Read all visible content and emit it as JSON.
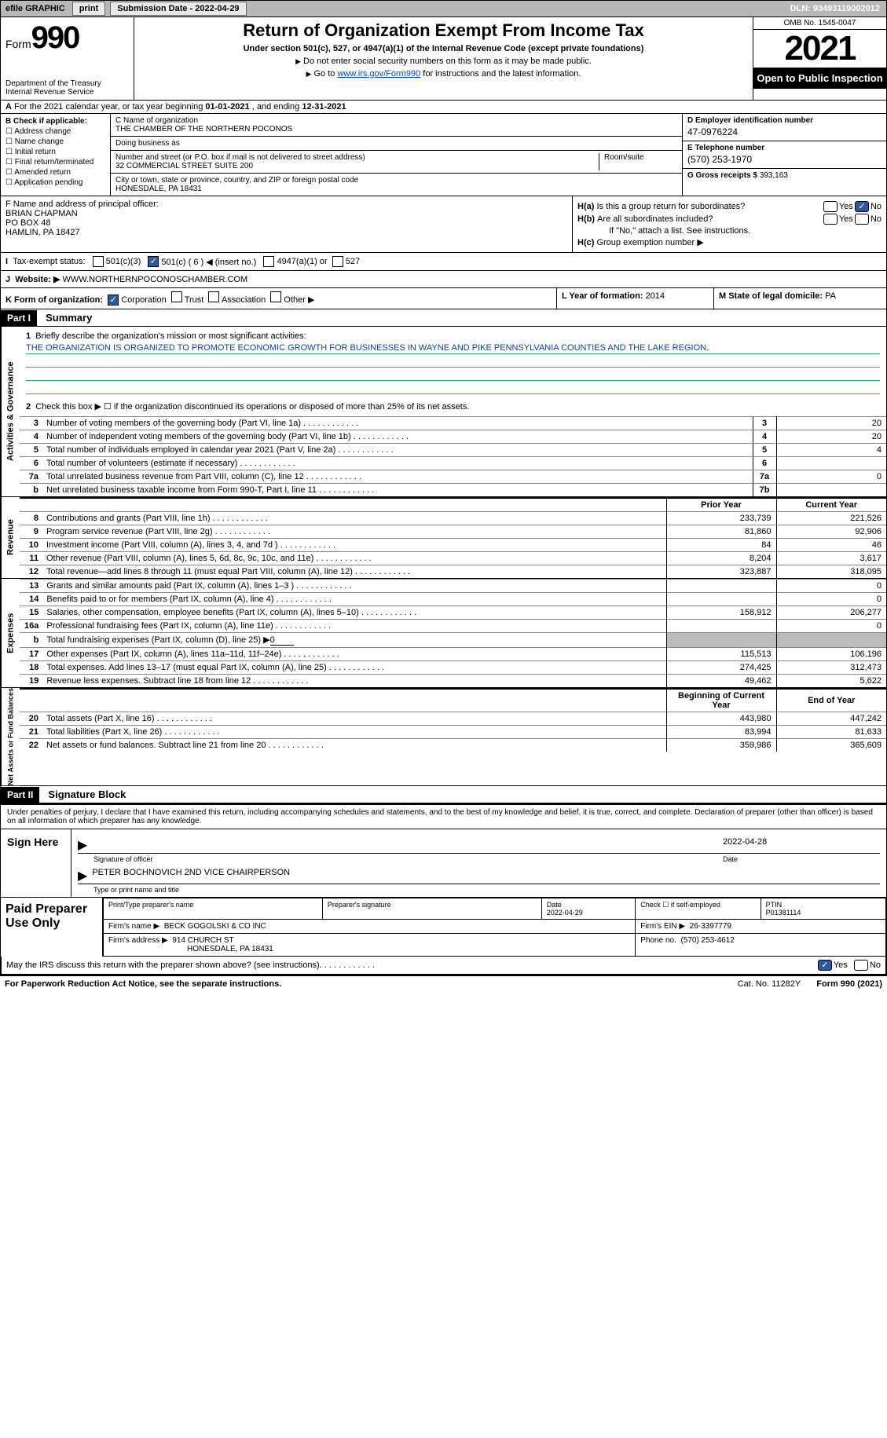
{
  "topbar": {
    "efile": "efile GRAPHIC",
    "print": "print",
    "subdate_label": "Submission Date - ",
    "subdate": "2022-04-29",
    "dln_label": "DLN: ",
    "dln": "93493119002012"
  },
  "header": {
    "form_label": "Form",
    "form_num": "990",
    "dept": "Department of the Treasury",
    "irs": "Internal Revenue Service",
    "title": "Return of Organization Exempt From Income Tax",
    "sub": "Under section 501(c), 527, or 4947(a)(1) of the Internal Revenue Code (except private foundations)",
    "note1": "Do not enter social security numbers on this form as it may be made public.",
    "note2_pre": "Go to ",
    "note2_link": "www.irs.gov/Form990",
    "note2_post": " for instructions and the latest information.",
    "omb": "OMB No. 1545-0047",
    "year": "2021",
    "inspection": "Open to Public Inspection"
  },
  "row_a": {
    "text_pre": "For the 2021 calendar year, or tax year beginning ",
    "begin": "01-01-2021",
    "mid": " , and ending ",
    "end": "12-31-2021"
  },
  "col_b": {
    "label": "B Check if applicable:",
    "items": [
      "Address change",
      "Name change",
      "Initial return",
      "Final return/terminated",
      "Amended return",
      "Application pending"
    ]
  },
  "col_c": {
    "name_label": "C Name of organization",
    "name": "THE CHAMBER OF THE NORTHERN POCONOS",
    "dba_label": "Doing business as",
    "dba": "",
    "street_label": "Number and street (or P.O. box if mail is not delivered to street address)",
    "street": "32 COMMERCIAL STREET SUITE 200",
    "room_label": "Room/suite",
    "city_label": "City or town, state or province, country, and ZIP or foreign postal code",
    "city": "HONESDALE, PA  18431"
  },
  "col_d": {
    "d_label": "D Employer identification number",
    "d_val": "47-0976224",
    "e_label": "E Telephone number",
    "e_val": "(570) 253-1970",
    "g_label": "G Gross receipts $ ",
    "g_val": "393,163"
  },
  "block_f": {
    "f_label": "F Name and address of principal officer:",
    "name": "BRIAN CHAPMAN",
    "addr1": "PO BOX 48",
    "addr2": "HAMLIN, PA  18427"
  },
  "block_h": {
    "ha_label": "Is this a group return for subordinates?",
    "ha_pre": "H(a)",
    "hb_pre": "H(b)",
    "hb_label": "Are all subordinates included?",
    "hb_note": "If \"No,\" attach a list. See instructions.",
    "hc_pre": "H(c)",
    "hc_label": "Group exemption number ▶",
    "yes": "Yes",
    "no": "No"
  },
  "row_i": {
    "label": "Tax-exempt status:",
    "opts": [
      "501(c)(3)",
      "501(c) ( 6 ) ◀ (insert no.)",
      "4947(a)(1) or",
      "527"
    ]
  },
  "row_j": {
    "label": "Website: ▶",
    "val": "WWW.NORTHERNPOCONOSCHAMBER.COM"
  },
  "row_k": {
    "label": "K Form of organization:",
    "opts": [
      "Corporation",
      "Trust",
      "Association",
      "Other ▶"
    ],
    "l_label": "L Year of formation: ",
    "l_val": "2014",
    "m_label": "M State of legal domicile: ",
    "m_val": "PA"
  },
  "part1": {
    "tag": "Part I",
    "title": "Summary",
    "q1_label": "Briefly describe the organization's mission or most significant activities:",
    "q1_num": "1",
    "mission": "THE ORGANIZATION IS ORGANIZED TO PROMOTE ECONOMIC GROWTH FOR BUSINESSES IN WAYNE AND PIKE PENNSYLVANIA COUNTIES AND THE LAKE REGION.",
    "q2_num": "2",
    "q2": "Check this box ▶ ☐ if the organization discontinued its operations or disposed of more than 25% of its net assets."
  },
  "side": {
    "ag": "Activities & Governance",
    "rev": "Revenue",
    "exp": "Expenses",
    "net": "Net Assets or Fund Balances"
  },
  "lines_ag": [
    {
      "n": "3",
      "d": "Number of voting members of the governing body (Part VI, line 1a)",
      "box": "3",
      "v": "20"
    },
    {
      "n": "4",
      "d": "Number of independent voting members of the governing body (Part VI, line 1b)",
      "box": "4",
      "v": "20"
    },
    {
      "n": "5",
      "d": "Total number of individuals employed in calendar year 2021 (Part V, line 2a)",
      "box": "5",
      "v": "4"
    },
    {
      "n": "6",
      "d": "Total number of volunteers (estimate if necessary)",
      "box": "6",
      "v": ""
    },
    {
      "n": "7a",
      "d": "Total unrelated business revenue from Part VIII, column (C), line 12",
      "box": "7a",
      "v": "0"
    },
    {
      "n": "b",
      "d": "Net unrelated business taxable income from Form 990-T, Part I, line 11",
      "box": "7b",
      "v": ""
    }
  ],
  "col_headers": {
    "prior": "Prior Year",
    "current": "Current Year",
    "boy": "Beginning of Current Year",
    "eoy": "End of Year"
  },
  "lines_rev": [
    {
      "n": "8",
      "d": "Contributions and grants (Part VIII, line 1h)",
      "p": "233,739",
      "c": "221,526"
    },
    {
      "n": "9",
      "d": "Program service revenue (Part VIII, line 2g)",
      "p": "81,860",
      "c": "92,906"
    },
    {
      "n": "10",
      "d": "Investment income (Part VIII, column (A), lines 3, 4, and 7d )",
      "p": "84",
      "c": "46"
    },
    {
      "n": "11",
      "d": "Other revenue (Part VIII, column (A), lines 5, 6d, 8c, 9c, 10c, and 11e)",
      "p": "8,204",
      "c": "3,617"
    },
    {
      "n": "12",
      "d": "Total revenue—add lines 8 through 11 (must equal Part VIII, column (A), line 12)",
      "p": "323,887",
      "c": "318,095"
    }
  ],
  "lines_exp": [
    {
      "n": "13",
      "d": "Grants and similar amounts paid (Part IX, column (A), lines 1–3 )",
      "p": "",
      "c": "0"
    },
    {
      "n": "14",
      "d": "Benefits paid to or for members (Part IX, column (A), line 4)",
      "p": "",
      "c": "0"
    },
    {
      "n": "15",
      "d": "Salaries, other compensation, employee benefits (Part IX, column (A), lines 5–10)",
      "p": "158,912",
      "c": "206,277"
    },
    {
      "n": "16a",
      "d": "Professional fundraising fees (Part IX, column (A), line 11e)",
      "p": "",
      "c": "0"
    },
    {
      "n": "b",
      "d": "Total fundraising expenses (Part IX, column (D), line 25) ▶",
      "p": "shade",
      "c": "shade",
      "inline": "0"
    },
    {
      "n": "17",
      "d": "Other expenses (Part IX, column (A), lines 11a–11d, 11f–24e)",
      "p": "115,513",
      "c": "106,196"
    },
    {
      "n": "18",
      "d": "Total expenses. Add lines 13–17 (must equal Part IX, column (A), line 25)",
      "p": "274,425",
      "c": "312,473"
    },
    {
      "n": "19",
      "d": "Revenue less expenses. Subtract line 18 from line 12",
      "p": "49,462",
      "c": "5,622"
    }
  ],
  "lines_net": [
    {
      "n": "20",
      "d": "Total assets (Part X, line 16)",
      "p": "443,980",
      "c": "447,242"
    },
    {
      "n": "21",
      "d": "Total liabilities (Part X, line 26)",
      "p": "83,994",
      "c": "81,633"
    },
    {
      "n": "22",
      "d": "Net assets or fund balances. Subtract line 21 from line 20",
      "p": "359,986",
      "c": "365,609"
    }
  ],
  "part2": {
    "tag": "Part II",
    "title": "Signature Block",
    "decl": "Under penalties of perjury, I declare that I have examined this return, including accompanying schedules and statements, and to the best of my knowledge and belief, it is true, correct, and complete. Declaration of preparer (other than officer) is based on all information of which preparer has any knowledge."
  },
  "sign": {
    "here": "Sign Here",
    "sig_label": "Signature of officer",
    "date_label": "Date",
    "date": "2022-04-28",
    "name": "PETER BOCHNOVICH  2ND VICE CHAIRPERSON",
    "name_label": "Type or print name and title"
  },
  "preparer": {
    "label": "Paid Preparer Use Only",
    "print_label": "Print/Type preparer's name",
    "sig_label": "Preparer's signature",
    "date_label": "Date",
    "date": "2022-04-29",
    "check_label": "Check ☐ if self-employed",
    "ptin_label": "PTIN",
    "ptin": "P01381114",
    "firm_name_label": "Firm's name   ▶",
    "firm_name": "BECK GOGOLSKI & CO INC",
    "firm_ein_label": "Firm's EIN ▶",
    "firm_ein": "26-3397779",
    "firm_addr_label": "Firm's address ▶",
    "firm_addr1": "914 CHURCH ST",
    "firm_addr2": "HONESDALE, PA  18431",
    "phone_label": "Phone no.",
    "phone": "(570) 253-4612"
  },
  "footer": {
    "discuss": "May the IRS discuss this return with the preparer shown above? (see instructions)",
    "yes": "Yes",
    "no": "No",
    "paperwork": "For Paperwork Reduction Act Notice, see the separate instructions.",
    "cat": "Cat. No. 11282Y",
    "formref": "Form 990 (2021)"
  }
}
